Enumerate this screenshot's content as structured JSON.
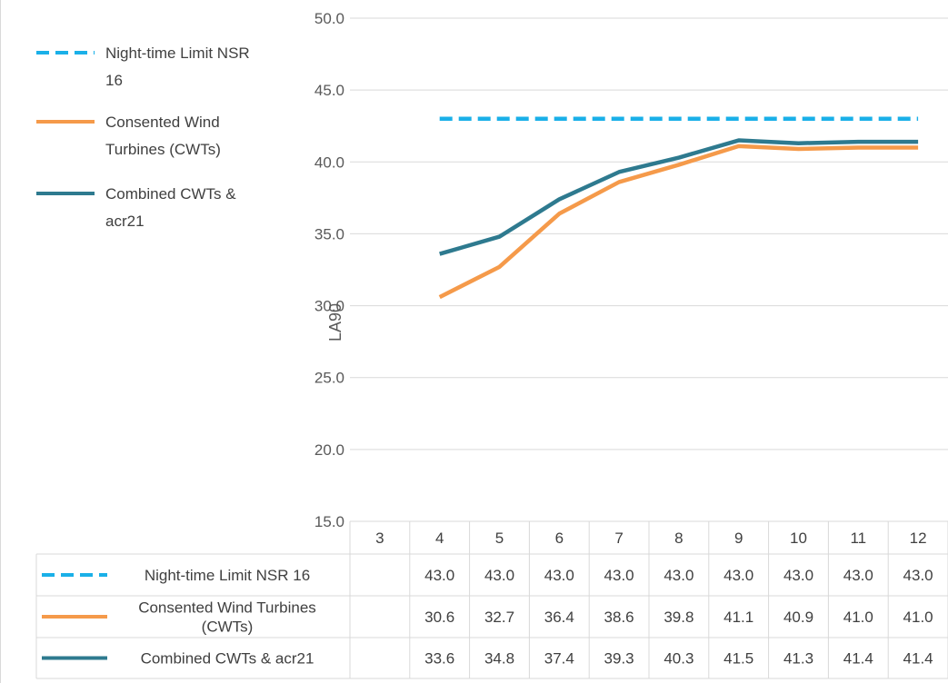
{
  "chart_data": {
    "type": "line",
    "ylabel": "LA90",
    "ylim": [
      15.0,
      50.0
    ],
    "yticks": [
      "15.0",
      "20.0",
      "25.0",
      "30.0",
      "35.0",
      "40.0",
      "45.0",
      "50.0"
    ],
    "categories": [
      "3",
      "4",
      "5",
      "6",
      "7",
      "8",
      "9",
      "10",
      "11",
      "12"
    ],
    "grid": true,
    "legend_position": "top-left",
    "series": [
      {
        "name": "Night-time Limit NSR 16",
        "legend_lines": [
          "Night-time Limit NSR",
          "16"
        ],
        "table_lines": [
          "Night-time Limit NSR 16"
        ],
        "color": "#1ab0e8",
        "dashed": true,
        "values": [
          null,
          43.0,
          43.0,
          43.0,
          43.0,
          43.0,
          43.0,
          43.0,
          43.0,
          43.0
        ],
        "labels": [
          "",
          "43.0",
          "43.0",
          "43.0",
          "43.0",
          "43.0",
          "43.0",
          "43.0",
          "43.0",
          "43.0"
        ]
      },
      {
        "name": "Consented Wind Turbines (CWTs)",
        "legend_lines": [
          "Consented Wind",
          "Turbines (CWTs)"
        ],
        "table_lines": [
          "Consented Wind Turbines",
          "(CWTs)"
        ],
        "color": "#f59a4a",
        "dashed": false,
        "values": [
          null,
          30.6,
          32.7,
          36.4,
          38.6,
          39.8,
          41.1,
          40.9,
          41.0,
          41.0
        ],
        "labels": [
          "",
          "30.6",
          "32.7",
          "36.4",
          "38.6",
          "39.8",
          "41.1",
          "40.9",
          "41.0",
          "41.0"
        ]
      },
      {
        "name": "Combined CWTs & acr21",
        "legend_lines": [
          "Combined CWTs &",
          "acr21"
        ],
        "table_lines": [
          "Combined CWTs & acr21"
        ],
        "color": "#2e7a8f",
        "dashed": false,
        "values": [
          null,
          33.6,
          34.8,
          37.4,
          39.3,
          40.3,
          41.5,
          41.3,
          41.4,
          41.4
        ],
        "labels": [
          "",
          "33.6",
          "34.8",
          "37.4",
          "39.3",
          "40.3",
          "41.5",
          "41.3",
          "41.4",
          "41.4"
        ]
      }
    ]
  }
}
